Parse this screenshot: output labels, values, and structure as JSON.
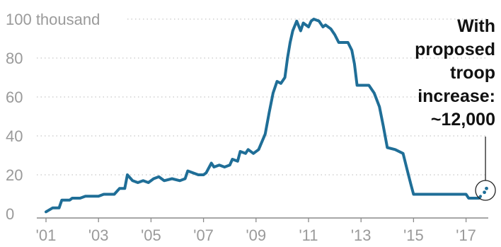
{
  "chart_data": {
    "type": "line",
    "title": "",
    "xlabel": "",
    "ylabel": "",
    "y_unit_label": "100 thousand",
    "ylim": [
      0,
      100
    ],
    "xlim": [
      2001.0,
      2017.8
    ],
    "y_ticks": [
      0,
      20,
      40,
      60,
      80,
      100
    ],
    "y_tick_labels": [
      "0",
      "20",
      "40",
      "60",
      "80",
      "100 thousand"
    ],
    "x_ticks": [
      2001,
      2003,
      2005,
      2007,
      2009,
      2011,
      2013,
      2015,
      2017
    ],
    "x_tick_labels": [
      "'01",
      "'03",
      "'05",
      "'07",
      "'09",
      "'11",
      "'13",
      "'15",
      "'17"
    ],
    "grid": "horizontal dotted",
    "colors": {
      "line": "#1f6e97",
      "grid": "#c8c8c8",
      "tick_text": "#9a9a9a",
      "annotation": "#111111"
    },
    "series": [
      {
        "values": [
          [
            2001.0,
            1
          ],
          [
            2001.25,
            3
          ],
          [
            2001.5,
            3
          ],
          [
            2001.6,
            7
          ],
          [
            2001.9,
            7
          ],
          [
            2002.0,
            8
          ],
          [
            2002.3,
            8
          ],
          [
            2002.5,
            9
          ],
          [
            2003.0,
            9
          ],
          [
            2003.2,
            10
          ],
          [
            2003.6,
            10
          ],
          [
            2003.8,
            13
          ],
          [
            2004.0,
            13
          ],
          [
            2004.1,
            20
          ],
          [
            2004.3,
            17
          ],
          [
            2004.5,
            16
          ],
          [
            2004.7,
            17
          ],
          [
            2004.9,
            16
          ],
          [
            2005.1,
            18
          ],
          [
            2005.3,
            19
          ],
          [
            2005.5,
            17
          ],
          [
            2005.8,
            18
          ],
          [
            2006.1,
            17
          ],
          [
            2006.3,
            18
          ],
          [
            2006.4,
            22
          ],
          [
            2006.6,
            21
          ],
          [
            2006.8,
            20
          ],
          [
            2007.0,
            20
          ],
          [
            2007.1,
            21
          ],
          [
            2007.3,
            26
          ],
          [
            2007.4,
            24
          ],
          [
            2007.6,
            25
          ],
          [
            2007.8,
            24
          ],
          [
            2008.0,
            25
          ],
          [
            2008.1,
            28
          ],
          [
            2008.3,
            27
          ],
          [
            2008.4,
            32
          ],
          [
            2008.6,
            31
          ],
          [
            2008.7,
            33
          ],
          [
            2008.9,
            31
          ],
          [
            2009.1,
            33
          ],
          [
            2009.35,
            41
          ],
          [
            2009.5,
            52
          ],
          [
            2009.65,
            62
          ],
          [
            2009.8,
            68
          ],
          [
            2009.95,
            67
          ],
          [
            2010.1,
            70
          ],
          [
            2010.2,
            80
          ],
          [
            2010.3,
            88
          ],
          [
            2010.4,
            94
          ],
          [
            2010.55,
            99
          ],
          [
            2010.7,
            94
          ],
          [
            2010.8,
            98
          ],
          [
            2011.0,
            96
          ],
          [
            2011.1,
            99
          ],
          [
            2011.2,
            100
          ],
          [
            2011.4,
            99
          ],
          [
            2011.55,
            96
          ],
          [
            2011.65,
            97
          ],
          [
            2011.85,
            95
          ],
          [
            2012.0,
            92
          ],
          [
            2012.15,
            88
          ],
          [
            2012.5,
            88
          ],
          [
            2012.65,
            84
          ],
          [
            2012.75,
            77
          ],
          [
            2012.85,
            66
          ],
          [
            2013.3,
            66
          ],
          [
            2013.5,
            62
          ],
          [
            2013.7,
            55
          ],
          [
            2013.85,
            45
          ],
          [
            2014.0,
            34
          ],
          [
            2014.3,
            33
          ],
          [
            2014.6,
            31
          ],
          [
            2014.75,
            23
          ],
          [
            2014.9,
            15
          ],
          [
            2015.0,
            10
          ],
          [
            2017.0,
            10
          ],
          [
            2017.1,
            8
          ],
          [
            2017.5,
            8
          ],
          [
            2017.55,
            9
          ]
        ]
      }
    ],
    "projection_points": [
      [
        2017.7,
        11
      ],
      [
        2017.78,
        13
      ]
    ],
    "annotation": {
      "lines": [
        "With",
        "proposed",
        "troop",
        "increase:",
        "~12,000"
      ]
    }
  }
}
